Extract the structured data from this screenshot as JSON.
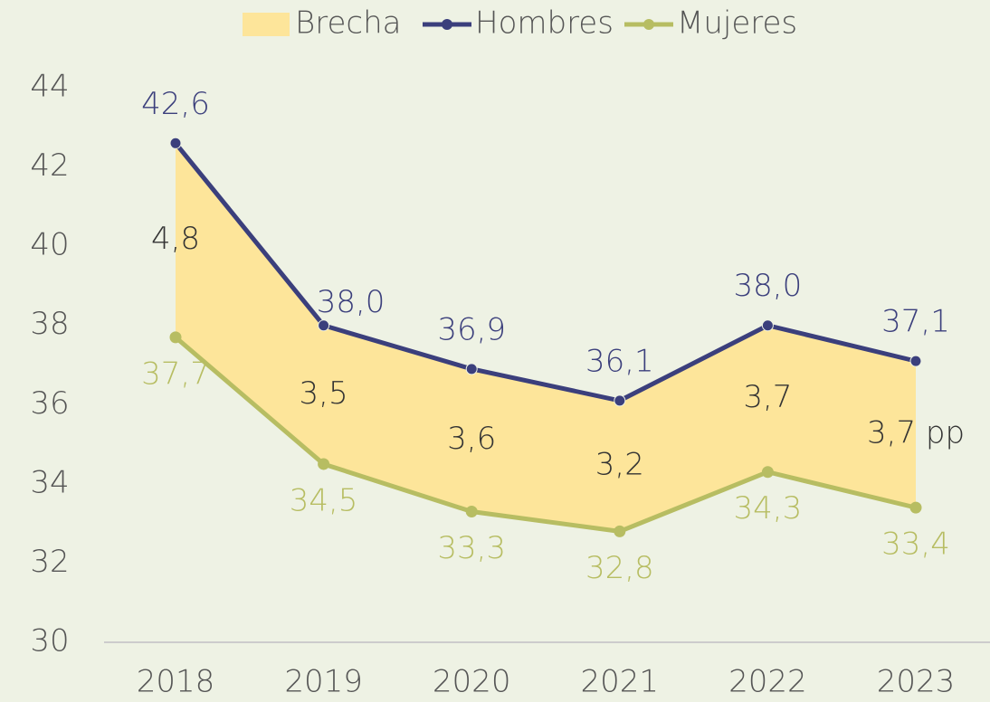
{
  "chart_data": {
    "type": "line",
    "categories": [
      "2018",
      "2019",
      "2020",
      "2021",
      "2022",
      "2023"
    ],
    "series": [
      {
        "name": "Hombres",
        "color": "#3b3f7c",
        "values": [
          42.6,
          38.0,
          36.9,
          36.1,
          38.0,
          37.1
        ],
        "value_labels": [
          "42,6",
          "38,0",
          "36,9",
          "36,1",
          "38,0",
          "37,1"
        ]
      },
      {
        "name": "Mujeres",
        "color": "#b7bd62",
        "values": [
          37.7,
          34.5,
          33.3,
          32.8,
          34.3,
          33.4
        ],
        "value_labels": [
          "37,7",
          "34,5",
          "33,3",
          "32,8",
          "34,3",
          "33,4"
        ]
      }
    ],
    "band": {
      "name": "Brecha",
      "color": "#fde59a",
      "values": [
        4.8,
        3.5,
        3.6,
        3.2,
        3.7,
        3.7
      ],
      "value_labels": [
        "4,8",
        "3,5",
        "3,6",
        "3,2",
        "3,7",
        "3,7 pp"
      ]
    },
    "ylim": [
      30,
      44
    ],
    "yticks": [
      30,
      32,
      34,
      36,
      38,
      40,
      42,
      44
    ],
    "legend": "top"
  }
}
